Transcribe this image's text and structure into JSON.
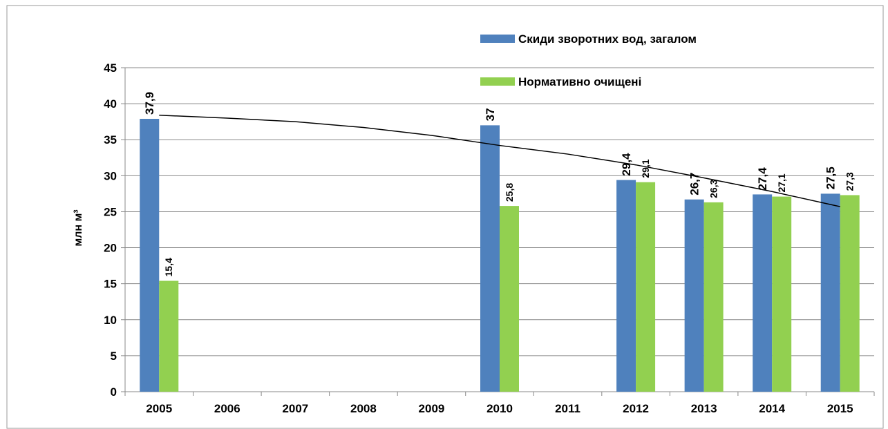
{
  "chart_data": {
    "type": "bar",
    "ylabel": "млн м³",
    "categories": [
      "2005",
      "2006",
      "2007",
      "2008",
      "2009",
      "2010",
      "2011",
      "2012",
      "2013",
      "2014",
      "2015"
    ],
    "series": [
      {
        "name": "Скиди зворотних вод, загалом",
        "color": "#4f81bd",
        "values": [
          37.9,
          null,
          null,
          null,
          null,
          37,
          null,
          29.4,
          26.7,
          27.4,
          27.5
        ],
        "value_labels": [
          "37,9",
          null,
          null,
          null,
          null,
          "37",
          null,
          "29,4",
          "26,7",
          "27,4",
          "27,5"
        ]
      },
      {
        "name": "Нормативно очищені",
        "color": "#92d050",
        "values": [
          15.4,
          null,
          null,
          null,
          null,
          25.8,
          null,
          29.1,
          26.3,
          27.1,
          27.3
        ],
        "value_labels": [
          "15,4",
          null,
          null,
          null,
          null,
          "25,8",
          null,
          "29,1",
          "26,3",
          "27,1",
          "27,3"
        ]
      }
    ],
    "trendline": {
      "color": "#000000",
      "values": [
        38.4,
        38.0,
        37.5,
        36.7,
        35.6,
        34.2,
        33.0,
        31.5,
        29.7,
        27.8,
        25.7
      ]
    },
    "ylim": [
      0,
      45
    ],
    "yticks": [
      0,
      5,
      10,
      15,
      20,
      25,
      30,
      35,
      40,
      45
    ],
    "grid": true
  }
}
